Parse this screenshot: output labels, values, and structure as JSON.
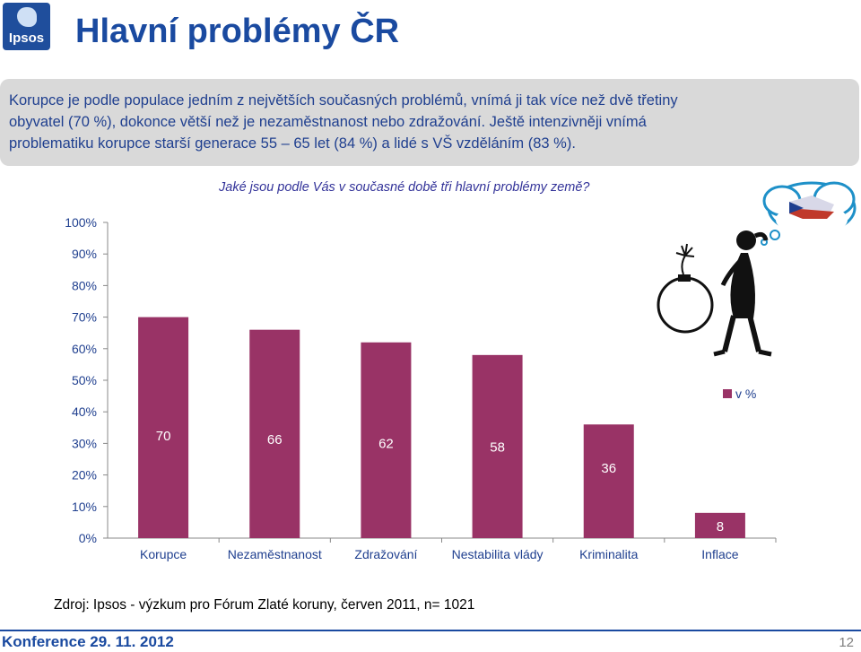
{
  "header": {
    "logo_text": "Ipsos",
    "title": "Hlavní problémy ČR"
  },
  "intro": {
    "line1": "Korupce je podle populace  jedním z největších současných problémů, vnímá ji tak více než dvě třetiny",
    "line2": "obyvatel (70 %), dokonce větší než je nezaměstnanost nebo zdražování. Ještě intenzivněji vnímá",
    "line3": "problematiku korupce starší generace  55 – 65 let (84 %) a lidé s VŠ vzděláním (83 %)."
  },
  "question": "Jaké jsou podle Vás v současné době tři hlavní problémy země?",
  "chart_data": {
    "type": "bar",
    "categories": [
      "Korupce",
      "Nezaměstnanost",
      "Zdražování",
      "Nestabilita vlády",
      "Kriminalita",
      "Inflace"
    ],
    "series": [
      {
        "name": "v %",
        "values": [
          70,
          66,
          62,
          58,
          36,
          8
        ],
        "color": "#993366"
      }
    ],
    "yticks": [
      "0%",
      "10%",
      "20%",
      "30%",
      "40%",
      "50%",
      "60%",
      "70%",
      "80%",
      "90%",
      "100%"
    ],
    "ylim": [
      0,
      100
    ],
    "data_labels": [
      "70",
      "66",
      "62",
      "58",
      "36",
      "8"
    ],
    "legend_position": "right",
    "grid": false
  },
  "source": "Zdroj: Ipsos - výzkum pro Fórum  Zlaté koruny, červen 2011, n= 1021",
  "footer": {
    "conference": "Konference  29. 11. 2012",
    "page_number": "12"
  },
  "colors": {
    "title": "#1a4aa0",
    "intro_text": "#1f3f8f",
    "intro_bg": "#d9d9d9",
    "bar": "#993366",
    "footer_line": "#1a4aa0"
  }
}
